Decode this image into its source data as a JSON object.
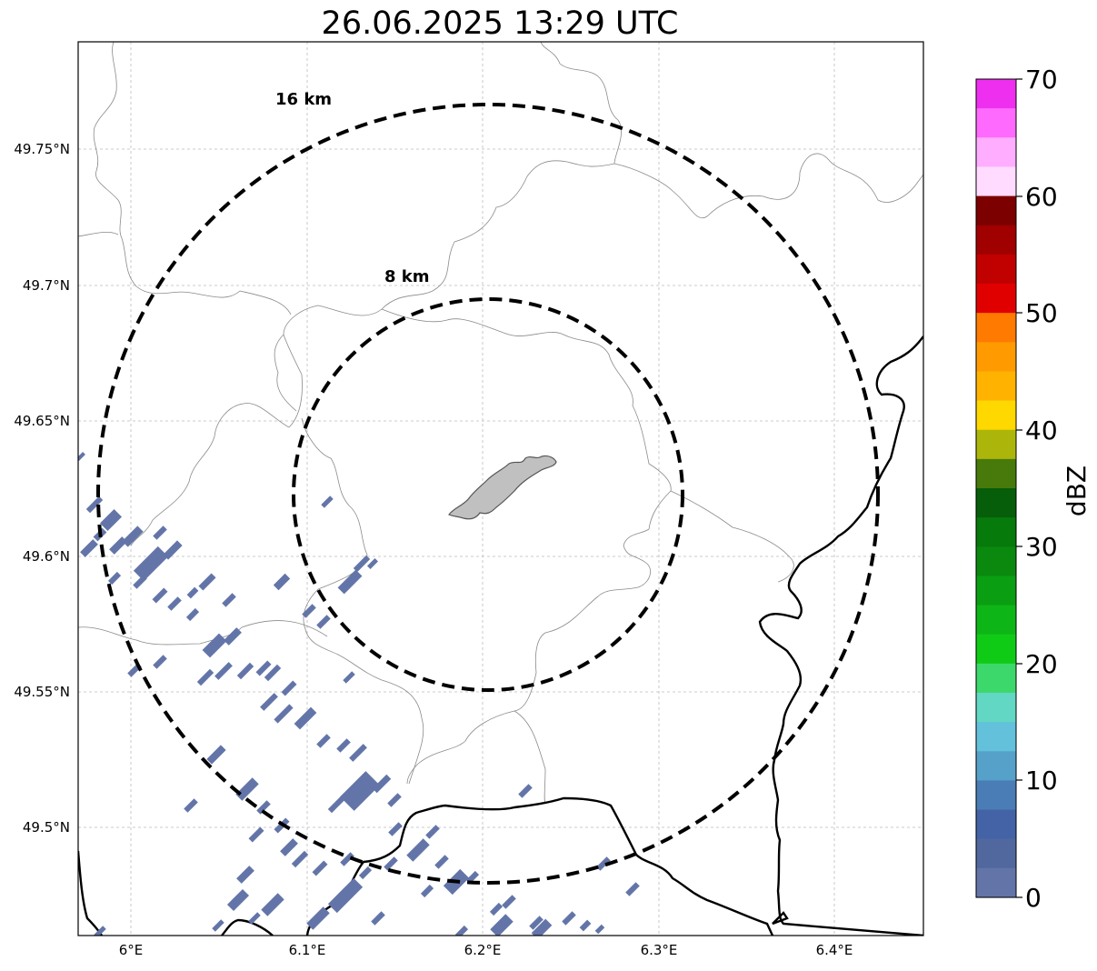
{
  "title": "26.06.2025 13:29 UTC",
  "range_rings": [
    {
      "label": "8 km"
    },
    {
      "label": "16 km"
    }
  ],
  "map": {
    "lon_ticks": [
      "6°E",
      "6.1°E",
      "6.2°E",
      "6.3°E",
      "6.4°E"
    ],
    "lat_ticks": [
      "49.75°N",
      "49.7°N",
      "49.65°N",
      "49.6°N",
      "49.55°N",
      "49.5°N"
    ]
  },
  "colorbar": {
    "label": "dBZ",
    "ticks": [
      "70",
      "60",
      "50",
      "40",
      "30",
      "20",
      "10",
      "0"
    ],
    "colors": [
      "#ef2ff0",
      "#fe6afe",
      "#ffaeff",
      "#ffdcff",
      "#7c0000",
      "#a00000",
      "#c10000",
      "#e10000",
      "#ff7a00",
      "#ff9a00",
      "#ffb300",
      "#ffd800",
      "#acb60a",
      "#477a0a",
      "#065e0a",
      "#067a0a",
      "#0a890e",
      "#0a9e12",
      "#0eb516",
      "#10cb16",
      "#3dd86b",
      "#62d7c3",
      "#63c1dc",
      "#56a1ca",
      "#4a7db5",
      "#4463a7",
      "#51689f",
      "#6375a8"
    ],
    "colors_order": "top-to-bottom"
  },
  "reflectivity_color": "#6375a8",
  "town_fill": "#c0c0c0"
}
